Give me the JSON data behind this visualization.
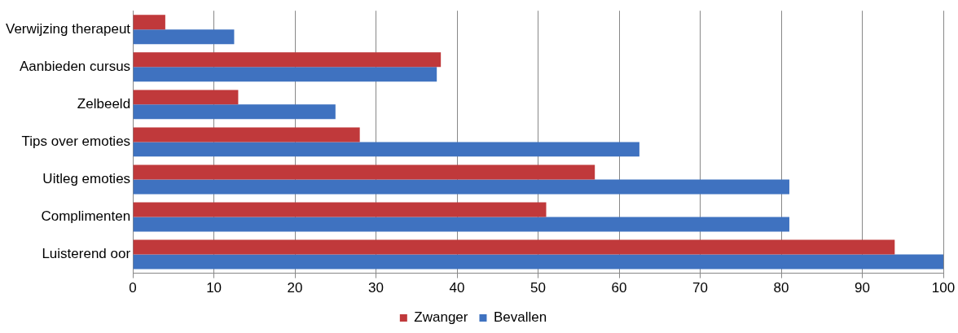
{
  "chart_data": {
    "type": "bar",
    "orientation": "horizontal",
    "categories": [
      "Verwijzing therapeut",
      "Aanbieden cursus",
      "Zelbeeld",
      "Tips over emoties",
      "Uitleg emoties",
      "Complimenten",
      "Luisterend oor"
    ],
    "series": [
      {
        "name": "Zwanger",
        "color": "#c0393b",
        "values": [
          4,
          38,
          13,
          28,
          57,
          51,
          94
        ]
      },
      {
        "name": "Bevallen",
        "color": "#3f72c0",
        "values": [
          12.5,
          37.5,
          25,
          62.5,
          81,
          81,
          100
        ]
      }
    ],
    "xlim": [
      0,
      100
    ],
    "xticks": [
      0,
      10,
      20,
      30,
      40,
      50,
      60,
      70,
      80,
      90,
      100
    ],
    "grid": "x",
    "legend": "bottom"
  }
}
